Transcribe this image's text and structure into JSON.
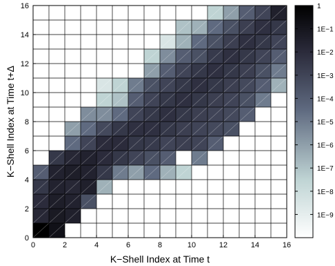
{
  "chart_data": {
    "type": "heatmap",
    "xlabel": "K−Shell Index at Time t",
    "ylabel": "K−Shell Index at Time t+Δ",
    "xlim": [
      0,
      16
    ],
    "ylim": [
      0,
      16
    ],
    "x_ticks": [
      0,
      2,
      4,
      6,
      8,
      10,
      12,
      14,
      16
    ],
    "y_ticks": [
      0,
      2,
      4,
      6,
      8,
      10,
      12,
      14,
      16
    ],
    "grid": true,
    "colorbar": {
      "scale": "log",
      "range": [
        1e-10,
        1
      ],
      "position": "right",
      "colormap": "bone (reversed)",
      "tick_exponents": [
        0,
        -1,
        -2,
        -3,
        -4,
        -5,
        -6,
        -7,
        -8,
        -9
      ],
      "tick_labels": [
        "1",
        "1E−1",
        "1E−2",
        "1E−3",
        "1E−4",
        "1E−5",
        "1E−6",
        "1E−7",
        "1E−8",
        "1E−9"
      ]
    },
    "value_encoding": "log10 of probability per 1x1 cell; null = no data (white)",
    "rows_y_bottom_to_top": [
      [
        0.0,
        -0.8,
        null,
        null,
        null,
        null,
        null,
        null,
        null,
        null,
        null,
        null,
        null,
        null,
        null,
        null
      ],
      [
        -1.8,
        -1.2,
        -1.5,
        null,
        null,
        null,
        null,
        null,
        null,
        null,
        null,
        null,
        null,
        null,
        null,
        null
      ],
      [
        -2.0,
        -1.4,
        -1.6,
        -3.5,
        null,
        null,
        null,
        null,
        null,
        null,
        null,
        null,
        null,
        null,
        null,
        null
      ],
      [
        -2.5,
        -1.6,
        -1.8,
        -1.5,
        -6.5,
        null,
        null,
        null,
        null,
        null,
        null,
        null,
        null,
        null,
        null,
        null
      ],
      [
        -4.0,
        -1.6,
        -1.4,
        -1.6,
        -2.5,
        -5.0,
        -6.0,
        -4.5,
        -6.5,
        -7.5,
        null,
        null,
        null,
        null,
        null,
        null
      ],
      [
        null,
        -2.5,
        -1.8,
        -1.6,
        -2.0,
        -2.5,
        -3.0,
        -3.5,
        -4.0,
        null,
        -5.0,
        null,
        null,
        null,
        null,
        null
      ],
      [
        null,
        null,
        -4.5,
        -3.0,
        -2.0,
        -2.0,
        -2.5,
        -2.6,
        -3.0,
        -2.8,
        -3.0,
        -4.0,
        null,
        null,
        null,
        null
      ],
      [
        null,
        null,
        -6.0,
        -4.5,
        -3.2,
        -2.5,
        -2.2,
        -2.2,
        -2.5,
        -2.8,
        -3.0,
        -3.2,
        -3.5,
        null,
        null,
        null
      ],
      [
        null,
        null,
        null,
        -5.5,
        -5.5,
        -4.5,
        -3.0,
        -2.5,
        -2.2,
        -2.5,
        -2.8,
        -3.0,
        -3.2,
        -4.0,
        null,
        null
      ],
      [
        null,
        null,
        null,
        null,
        -7.5,
        -7.0,
        -4.0,
        -3.0,
        -2.5,
        -2.2,
        -2.5,
        -2.8,
        -3.0,
        -3.5,
        -5.0,
        null
      ],
      [
        null,
        null,
        null,
        null,
        -8.5,
        -7.5,
        -5.0,
        -3.5,
        -3.0,
        -2.5,
        -2.2,
        -2.5,
        -2.8,
        -3.2,
        -4.0,
        -6.5
      ],
      [
        null,
        null,
        null,
        null,
        null,
        null,
        null,
        -6.0,
        -4.0,
        -3.0,
        -2.5,
        -2.2,
        -2.5,
        -2.8,
        -3.5,
        -5.0
      ],
      [
        null,
        null,
        null,
        null,
        null,
        null,
        null,
        -7.5,
        -5.5,
        -4.0,
        -3.5,
        -2.6,
        -2.2,
        -2.5,
        -3.0,
        -4.0
      ],
      [
        null,
        null,
        null,
        null,
        null,
        null,
        null,
        null,
        -8.5,
        -6.5,
        -4.5,
        -3.5,
        -2.8,
        -2.2,
        -2.5,
        -3.0
      ],
      [
        null,
        null,
        null,
        null,
        null,
        null,
        null,
        null,
        null,
        -7.0,
        -6.5,
        -4.5,
        -3.5,
        -2.8,
        -2.2,
        -2.5
      ],
      [
        null,
        null,
        null,
        null,
        null,
        null,
        null,
        null,
        null,
        null,
        null,
        -7.5,
        -6.0,
        -4.0,
        -3.0,
        -1.5
      ]
    ]
  }
}
